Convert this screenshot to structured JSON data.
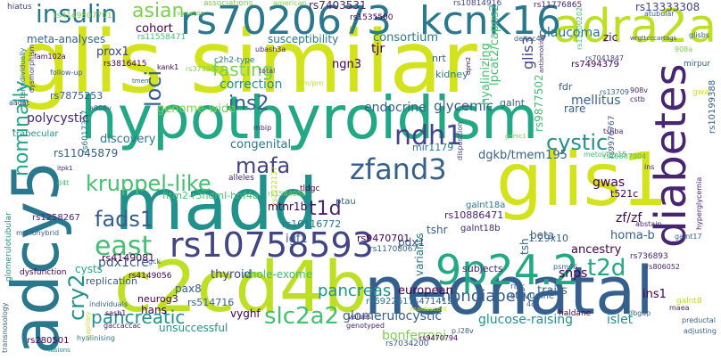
{
  "words": {
    "glis_similar": "glis similar",
    "hypothyroidism": "hypothyroidism",
    "glis1": "glis1",
    "madd": "madd",
    "neonatal": "neonatal",
    "c2cd4b": "c2cd4b",
    "adcy5": "adcy5",
    "rs7020673": "rs7020673",
    "kcnk16": "kcnk16",
    "adra2a": "adra2a",
    "diabetes": "diabetes",
    "rs10758593": "rs10758593",
    "p9p24_2": "9p24.2",
    "zfand3": "zfand3",
    "kruppel_like": "kruppel-like",
    "insulin": "insulin",
    "asian": "asian",
    "fads1": "fads1",
    "east": "east",
    "ndh1": "ndh1",
    "mafa": "mafa",
    "cystic": "cystic",
    "t2d": "t2d",
    "t1d": "t1d",
    "cry2": "cry2",
    "slc2a2": "slc2a2",
    "pancreatic": "pancreatic",
    "pancreas": "pancreas",
    "nondiabetic": "nondiabetic",
    "fasting": "fasting",
    "ins2": "ins2",
    "loci": "loci",
    "nominally": "nominally",
    "pdx1cre": "pdx1cre",
    "glis3": "glis3",
    "glaucoma": "glaucoma",
    "consortium": "consortium",
    "susceptibility": "susceptibility",
    "cohort": "cohort",
    "meta_analyses": "meta-analyses",
    "prox1": "prox1",
    "genome_wide": "genome-wide",
    "endocrine": "endocrine",
    "glycemic": "glycemic",
    "mellitus": "mellitus",
    "correction": "correction",
    "ngn3": "ngn3",
    "hyalinizing": "hyalinizing",
    "lpcat2_capns2": "lpcat2/capns2",
    "polycystic": "polycystic",
    "discovery": "discovery",
    "congenital": "congenital",
    "rs11045879": "rs11045879",
    "fitm2": "fitm2-r3hdml-hnf4a",
    "mtnr1b": "mtnr1b",
    "dgkb": "dgkb/tmem195",
    "gwas": "gwas",
    "zf_zf": "zf/zf",
    "homa_b": "homa-b",
    "ancestry": "ancestry",
    "beta": "beta",
    "snps": "snps",
    "traits": "traits",
    "ins1": "ins1",
    "glucose_raising": "glucose-raising",
    "islet": "islet",
    "bonferroni": "bonferroni",
    "glomerulocystic": "glomerulocystic",
    "european": "european",
    "unsuccessful": "unsuccessful",
    "hans": "hans",
    "vyghf": "vyghf",
    "whole_exome": "whole-exome",
    "thyroid": "thyroid",
    "pax8": "pax8",
    "neurog3": "neurog3",
    "replication": "replication",
    "cysts": "cysts",
    "igf1": "igf1",
    "pdx1": "pdx1",
    "tsh": "tsh",
    "tshr": "tshr",
    "variants": "variants",
    "subjects": "subjects",
    "rs4149081": "rs4149081",
    "rs10886471": "rs10886471",
    "rs10116772": "rs10116772",
    "rs9470701": "rs9470701",
    "galnt18a": "galnt18a",
    "galnt18b": "galnt18b",
    "rs7875253": "rs7875253",
    "rs4149056": "rs4149056",
    "rs514716": "rs514716",
    "rs6017317": "rs6017317",
    "rs1258267": "rs1258267",
    "rs7403531": "rs7403531",
    "rs13333308": "rs13333308",
    "rs11776865": "rs11776865",
    "rs10814916": "rs10814916",
    "rs9877502": "rs9877502",
    "rs9976767": "rs9976767",
    "rs7494379": "rs7494379",
    "rs10199388": "rs10199388",
    "rs4149807701": "rs4149807701",
    "rs3816415": "rs3816415",
    "rs11558471": "rs11558471",
    "rs6922617": "rs6922617",
    "rs4714120": "rs4714120",
    "rs280501": "rs280501",
    "rs7034200": "rs7034200",
    "rs736893": "rs736893",
    "rs806052": "rs806052",
    "rs10887004": "rs10887004",
    "rs11708067": "rs11708067",
    "rs1544050": "rs1544050",
    "rs1535500": "rs1535500",
    "rs11700202": "rs11700202",
    "rs9470794": "rs9470794",
    "rs7041847": "rs7041847",
    "rs13709": "rs13709",
    "rs3739823": "rs3739823",
    "rs2222137": "rs2222137",
    "nrt": "nrt",
    "kidney": "kidney",
    "zic": "zic",
    "fdr": "fdr",
    "rare": "rare",
    "galnt": "galnt",
    "tjr": "tjr",
    "associations": "associations",
    "american": "american",
    "hiatus": "hiatus",
    "ubash3a": "ubash3a",
    "deltac49": "deltac49",
    "kank1": "kank1",
    "c2h2_type": "c2h2-type",
    "total": "total",
    "trabecular": "trabecular",
    "dm_pm": "dm/pm",
    "mbip": "mbip",
    "mirpur": "mirpur",
    "gwa": "gwa",
    "glisbs": "glisbs",
    "wrgttcccartags": "wrgttcccartags",
    "atubular": "atubular",
    "p908a": "908a",
    "p908v": "908v",
    "cstb": "cstb",
    "disposition": "disposition",
    "t521c": "t521c",
    "gck": "gck",
    "alleles": "alleles",
    "tldgc": "tldgc",
    "ptau": "ptau",
    "mir1179": "mir1179",
    "metol": "metol/fax15",
    "p1_29x10": "1.29x10",
    "psmd6": "psmd6",
    "galnt17": "galnt17",
    "abstain": "abstain",
    "ins": "ins",
    "hyperglycemia": "hyperglycemia",
    "transnosology": "transnosology",
    "glomerulotubular": "glomerulotubular",
    "monohybrid": "monohybrid",
    "dysfunction": "dysfunction",
    "individuals": "individuals",
    "sash1": "sash1",
    "gaccaccac": "gaccaccac",
    "hyalinising": "hyalinising",
    "values": "values",
    "genotyped": "genotyped",
    "haldane": "haldane",
    "stavudine": "stavudine",
    "risk": "risk",
    "c4c6": "4c6",
    "maea": "maea",
    "dbgap": "dbgap",
    "preductal": "preductal",
    "adjusting": "adjusting",
    "galnt8": "galnt8",
    "follow_up": "follow-up",
    "fam102a": "fam102a",
    "aadat": "aadat",
    "a908v": "a908v",
    "itpk1": "itpk1",
    "d4t": "d4t",
    "p_l28v": "p.l28v",
    "gemc1": "gemc1",
    "tshba": "tshba",
    "interindividually": "interindividually",
    "dysmorphism": "dysmorphism",
    "tmem": "tmem",
    "dpm2": "dpm2",
    "antismoking": "antismoking",
    "maldescent": "maldescent",
    "papillary": "papillary",
    "fusions": "fusions",
    "variation": "variation"
  },
  "colors": {
    "c1": "#440154",
    "c2": "#482475",
    "c3": "#414487",
    "c4": "#355f8d",
    "c5": "#2a788e",
    "c6": "#21918c",
    "c7": "#22a884",
    "c8": "#44bf70",
    "c9": "#7ad151",
    "c10": "#bddf26",
    "c11": "#d2e21b"
  }
}
